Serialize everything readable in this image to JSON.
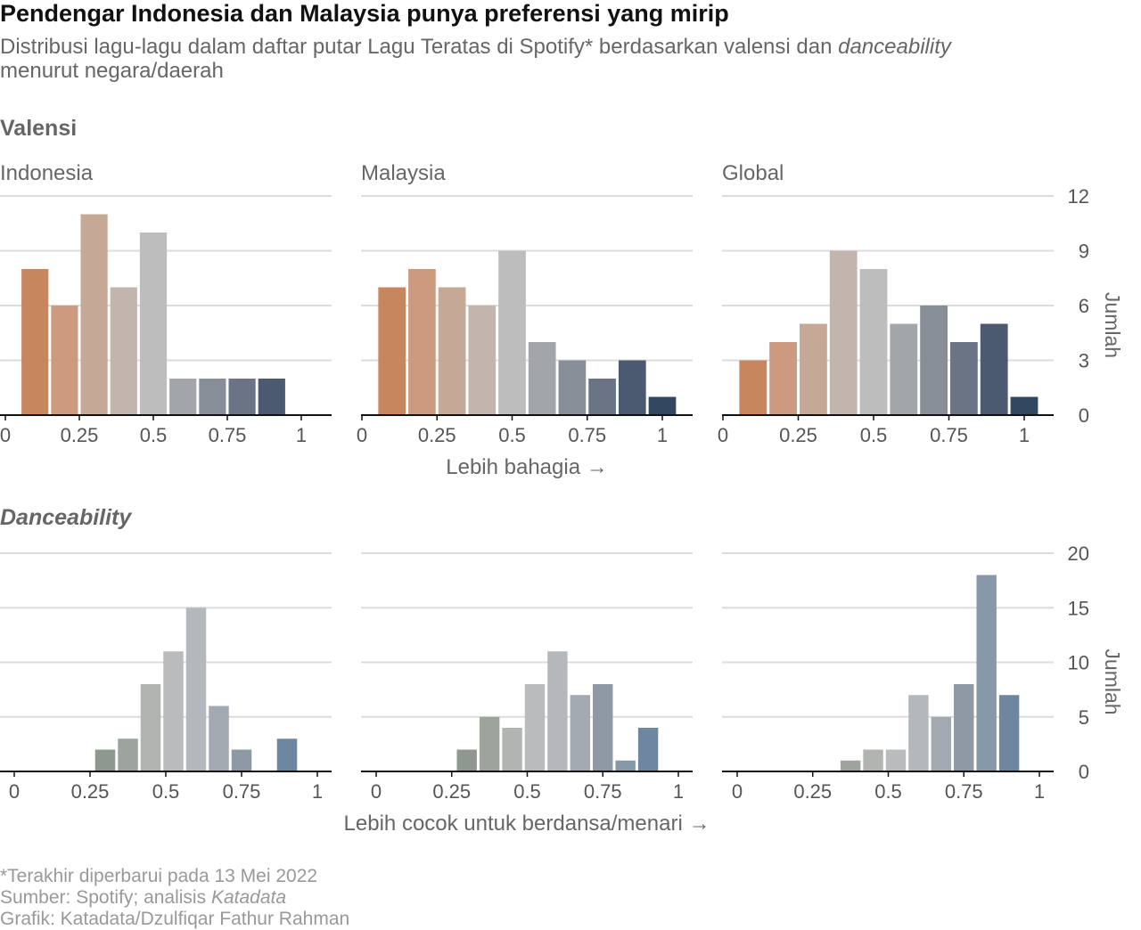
{
  "title": "Pendengar Indonesia dan Malaysia punya preferensi yang mirip",
  "subtitle": {
    "line1_prefix": "Distribusi lagu-lagu dalam daftar putar Lagu Teratas di Spotify* berdasarkan valensi dan ",
    "line1_italic": "danceability",
    "line2": "menurut negara/daerah"
  },
  "footer": {
    "line1": "*Terakhir diperbarui pada 13 Mei 2022",
    "line2_prefix": "Sumber: Spotify; analisis ",
    "line2_italic": "Katadata",
    "line3": "Grafik: Katadata/Dzulfiqar Fathur Rahman"
  },
  "chart_data": [
    {
      "type": "bar",
      "section_title": "Valensi",
      "xlabel": "Lebih bahagia →",
      "ylabel": "Jumlah",
      "x_ticks": [
        "0",
        "0.25",
        "0.5",
        "0.75",
        "1"
      ],
      "x_tick_values": [
        0,
        0.25,
        0.5,
        0.75,
        1
      ],
      "y_ticks": [
        "0",
        "3",
        "6",
        "9",
        "12"
      ],
      "ylim": [
        0,
        12
      ],
      "xlim": [
        0,
        1
      ],
      "bin_width": 0.1,
      "bin_centers": [
        0.1,
        0.2,
        0.3,
        0.4,
        0.5,
        0.6,
        0.7,
        0.8,
        0.9,
        1.0
      ],
      "bar_colors": [
        "#c8865e",
        "#cb9a7f",
        "#c6a896",
        "#c2b5ad",
        "#bdbdbd",
        "#a2a6ab",
        "#878e98",
        "#6a7484",
        "#4b5a70",
        "#324760"
      ],
      "panels": [
        {
          "name": "Indonesia",
          "values": [
            8,
            6,
            11,
            7,
            10,
            2,
            2,
            2,
            2,
            0
          ]
        },
        {
          "name": "Malaysia",
          "values": [
            7,
            8,
            7,
            6,
            9,
            4,
            3,
            2,
            3,
            1
          ]
        },
        {
          "name": "Global",
          "values": [
            3,
            4,
            5,
            9,
            8,
            5,
            6,
            4,
            5,
            1
          ]
        }
      ]
    },
    {
      "type": "bar",
      "section_title": "Danceability",
      "xlabel": "Lebih cocok untuk berdansa/menari →",
      "ylabel": "Jumlah",
      "x_ticks": [
        "0",
        "0.25",
        "0.5",
        "0.75",
        "1"
      ],
      "x_tick_values": [
        0,
        0.25,
        0.5,
        0.75,
        1
      ],
      "y_ticks": [
        "0",
        "5",
        "10",
        "15",
        "20"
      ],
      "ylim": [
        0,
        20
      ],
      "xlim": [
        0,
        1
      ],
      "bin_width": 0.075,
      "bin_centers": [
        0.3,
        0.375,
        0.45,
        0.525,
        0.6,
        0.675,
        0.75,
        0.825,
        0.9
      ],
      "bar_colors": [
        "#8f988e",
        "#9da39d",
        "#b1b4b0",
        "#b9bbbd",
        "#b4b7bb",
        "#a3a9b1",
        "#8f99a6",
        "#8798a8",
        "#6f86a0"
      ],
      "panels": [
        {
          "name": "Indonesia",
          "values": [
            2,
            3,
            8,
            11,
            15,
            6,
            2,
            0,
            3
          ]
        },
        {
          "name": "Malaysia",
          "values": [
            2,
            5,
            4,
            8,
            11,
            7,
            8,
            1,
            4
          ]
        },
        {
          "name": "Global",
          "values": [
            0,
            1,
            2,
            2,
            7,
            5,
            8,
            18,
            7
          ]
        }
      ]
    }
  ]
}
